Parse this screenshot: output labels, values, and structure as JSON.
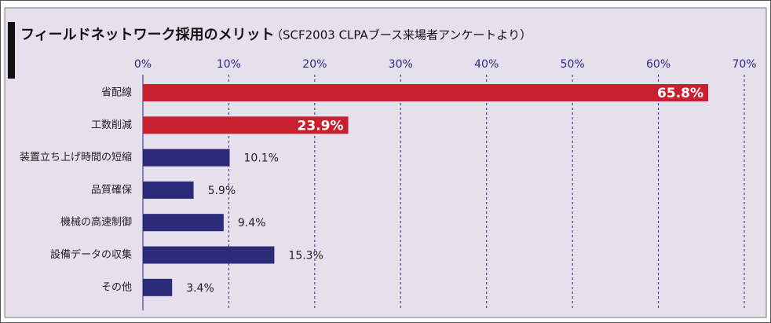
{
  "chart_data": {
    "type": "bar",
    "orientation": "horizontal",
    "title": "フィールドネットワーク採用のメリット",
    "subtitle": "（SCF2003 CLPAブース来場者アンケートより）",
    "categories": [
      "省配線",
      "工数削減",
      "装置立ち上げ時間の短縮",
      "品質確保",
      "機械の高速制御",
      "設備データの収集",
      "その他"
    ],
    "values": [
      65.8,
      23.9,
      10.1,
      5.9,
      9.4,
      15.3,
      3.4
    ],
    "value_labels": [
      "65.8%",
      "23.9%",
      "10.1%",
      "5.9%",
      "9.4%",
      "15.3%",
      "3.4%"
    ],
    "colors": [
      "#c8202e",
      "#c8202e",
      "#2b2b7a",
      "#2b2b7a",
      "#2b2b7a",
      "#2b2b7a",
      "#2b2b7a"
    ],
    "highlight_color": "#c8202e",
    "xlim": [
      0,
      70
    ],
    "xticks": [
      {
        "value": 0,
        "label": "0%"
      },
      {
        "value": 10,
        "label": "10%"
      },
      {
        "value": 20,
        "label": "20%"
      },
      {
        "value": 30,
        "label": "30%"
      },
      {
        "value": 40,
        "label": "40%"
      },
      {
        "value": 50,
        "label": "50%"
      },
      {
        "value": 60,
        "label": "60%"
      },
      {
        "value": 70,
        "label": "70%"
      }
    ],
    "grid": true
  }
}
